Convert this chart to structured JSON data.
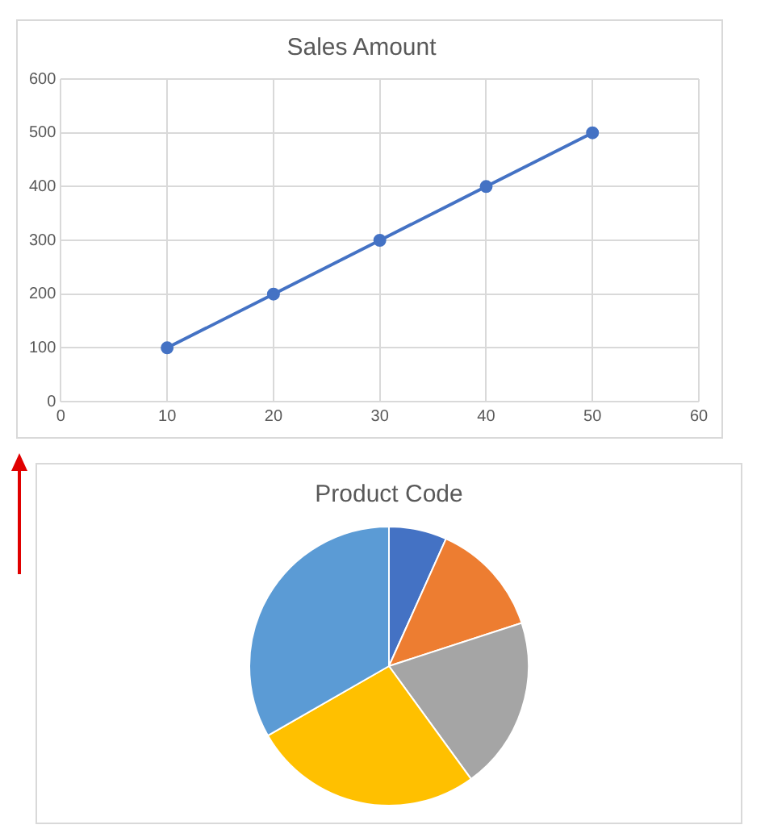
{
  "chart_data": [
    {
      "type": "line",
      "title": "Sales Amount",
      "x": [
        10,
        20,
        30,
        40,
        50
      ],
      "values": [
        100,
        200,
        300,
        400,
        500
      ],
      "color": "#4472c4",
      "xlim": [
        0,
        60
      ],
      "ylim": [
        0,
        600
      ],
      "xticks": [
        0,
        10,
        20,
        30,
        40,
        50,
        60
      ],
      "yticks": [
        0,
        100,
        200,
        300,
        400,
        500,
        600
      ],
      "grid": true,
      "marker": "circle"
    },
    {
      "type": "pie",
      "title": "Product Code",
      "categories": [
        null,
        null,
        null,
        null,
        null
      ],
      "values": [
        6.7,
        13.3,
        20,
        26.7,
        33.3
      ],
      "colors": [
        "#4472c4",
        "#ed7d31",
        "#a5a5a5",
        "#ffc000",
        "#5b9bd5"
      ]
    }
  ]
}
